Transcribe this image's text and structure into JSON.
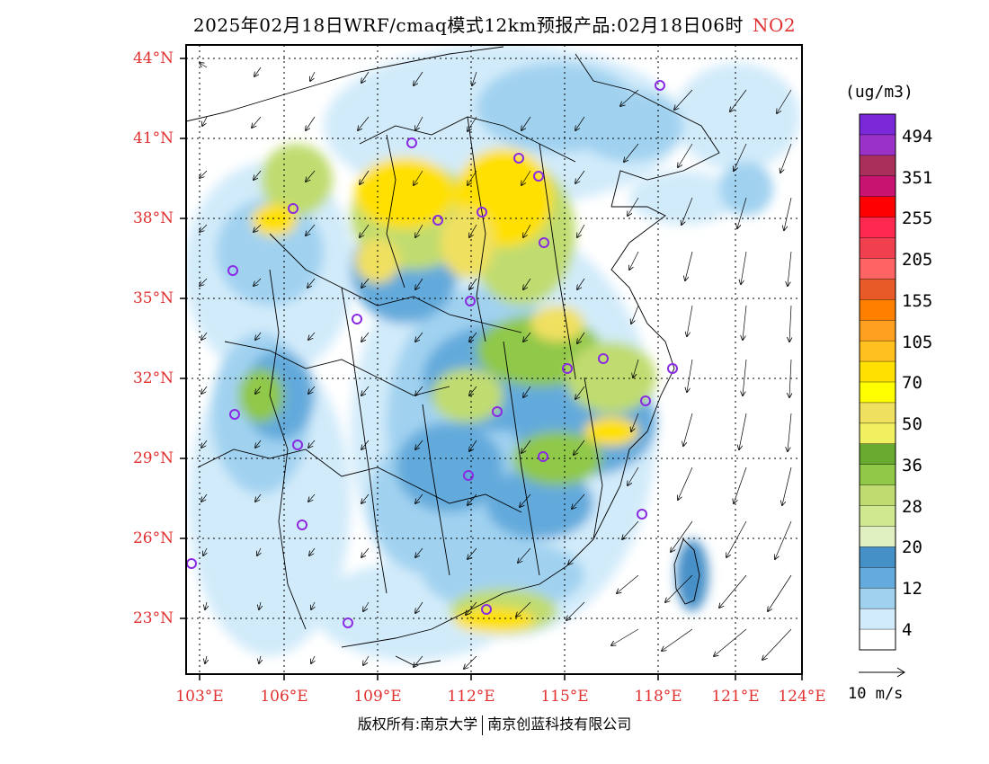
{
  "header": {
    "title": "2025年02月18日WRF/cmaq模式12km预报产品:02月18日06时",
    "pollutant": "NO2",
    "pollutant_color": "#e03030"
  },
  "map": {
    "lat_labels": [
      "44°N",
      "41°N",
      "38°N",
      "35°N",
      "32°N",
      "29°N",
      "26°N",
      "23°N"
    ],
    "lon_labels": [
      "103°E",
      "106°E",
      "109°E",
      "112°E",
      "115°E",
      "118°E",
      "121°E",
      "124°E"
    ],
    "station_marker_color": "#8a2be2"
  },
  "legend": {
    "unit": "(ug/m3)",
    "labels": [
      "494",
      "351",
      "255",
      "205",
      "155",
      "105",
      "70",
      "50",
      "36",
      "28",
      "20",
      "12",
      "4"
    ],
    "colors": [
      "#7a28d8",
      "#9b32c8",
      "#a8305a",
      "#c81470",
      "#ff0000",
      "#ff2850",
      "#f04050",
      "#ff6464",
      "#e85a28",
      "#ff8000",
      "#ffa020",
      "#ffc020",
      "#ffe000",
      "#ffff00",
      "#f0e060",
      "#f0f060",
      "#6aaa30",
      "#90c848",
      "#c0dc70",
      "#d0e890",
      "#e0f0c0",
      "#4690c8",
      "#64aadc",
      "#a0d2f0",
      "#d2ebfa",
      "#ffffff"
    ]
  },
  "wind_reference": {
    "label": "10 m/s"
  },
  "footer": {
    "copyright_left": "版权所有:南京大学",
    "copyright_right": "南京创蓝科技有限公司"
  }
}
